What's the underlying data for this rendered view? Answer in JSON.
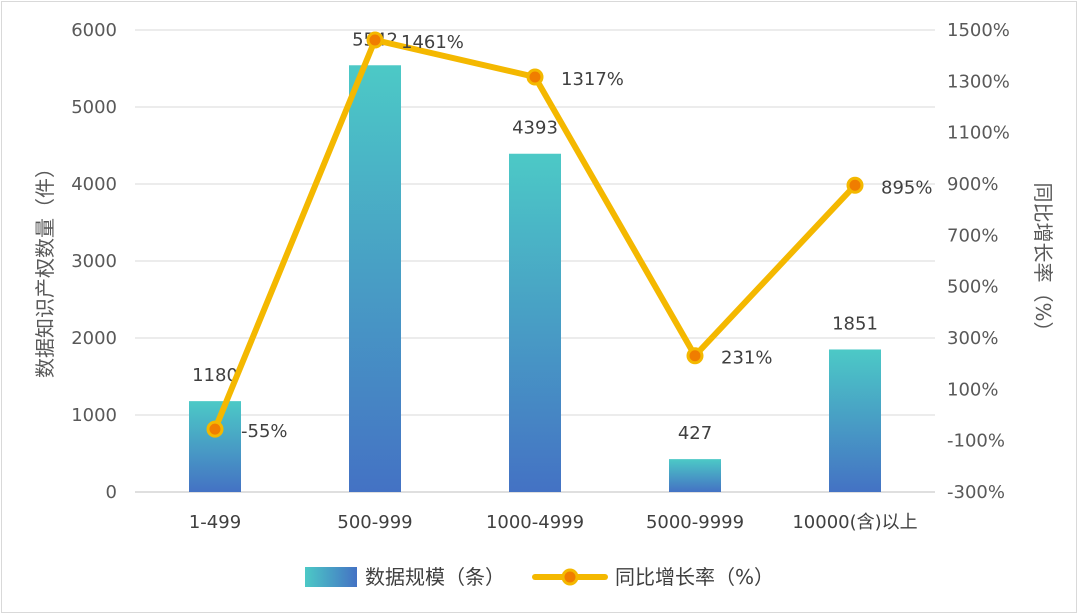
{
  "chart_data": {
    "type": "bar",
    "categories": [
      "1-499",
      "500-999",
      "1000-4999",
      "5000-9999",
      "10000(含)以上"
    ],
    "series": [
      {
        "name": "数据规模（条）",
        "kind": "bar",
        "axis": "left",
        "values": [
          1180,
          5542,
          4393,
          427,
          1851
        ],
        "labels": [
          "1180",
          "5542",
          "4393",
          "427",
          "1851"
        ],
        "color_top": "#4cc9c6",
        "color_bottom": "#4472c4"
      },
      {
        "name": "同比增长率（%）",
        "kind": "line",
        "axis": "right",
        "values": [
          -55,
          1461,
          1317,
          231,
          895
        ],
        "labels": [
          "-55%",
          "1461%",
          "1317%",
          "231%",
          "895%"
        ],
        "color": "#f4b800",
        "marker_color": "#f07d00"
      }
    ],
    "y_left": {
      "label": "数据知识产权数量（件）",
      "ylim": [
        0,
        6000
      ],
      "ticks": [
        "0",
        "1000",
        "2000",
        "3000",
        "4000",
        "5000",
        "6000"
      ]
    },
    "y_right": {
      "label": "同比增长率（%）",
      "ylim": [
        -300,
        1500
      ],
      "ticks": [
        "-300%",
        "-100%",
        "100%",
        "300%",
        "500%",
        "700%",
        "900%",
        "1100%",
        "1300%",
        "1500%"
      ]
    },
    "grid": true,
    "legend": "bottom"
  }
}
